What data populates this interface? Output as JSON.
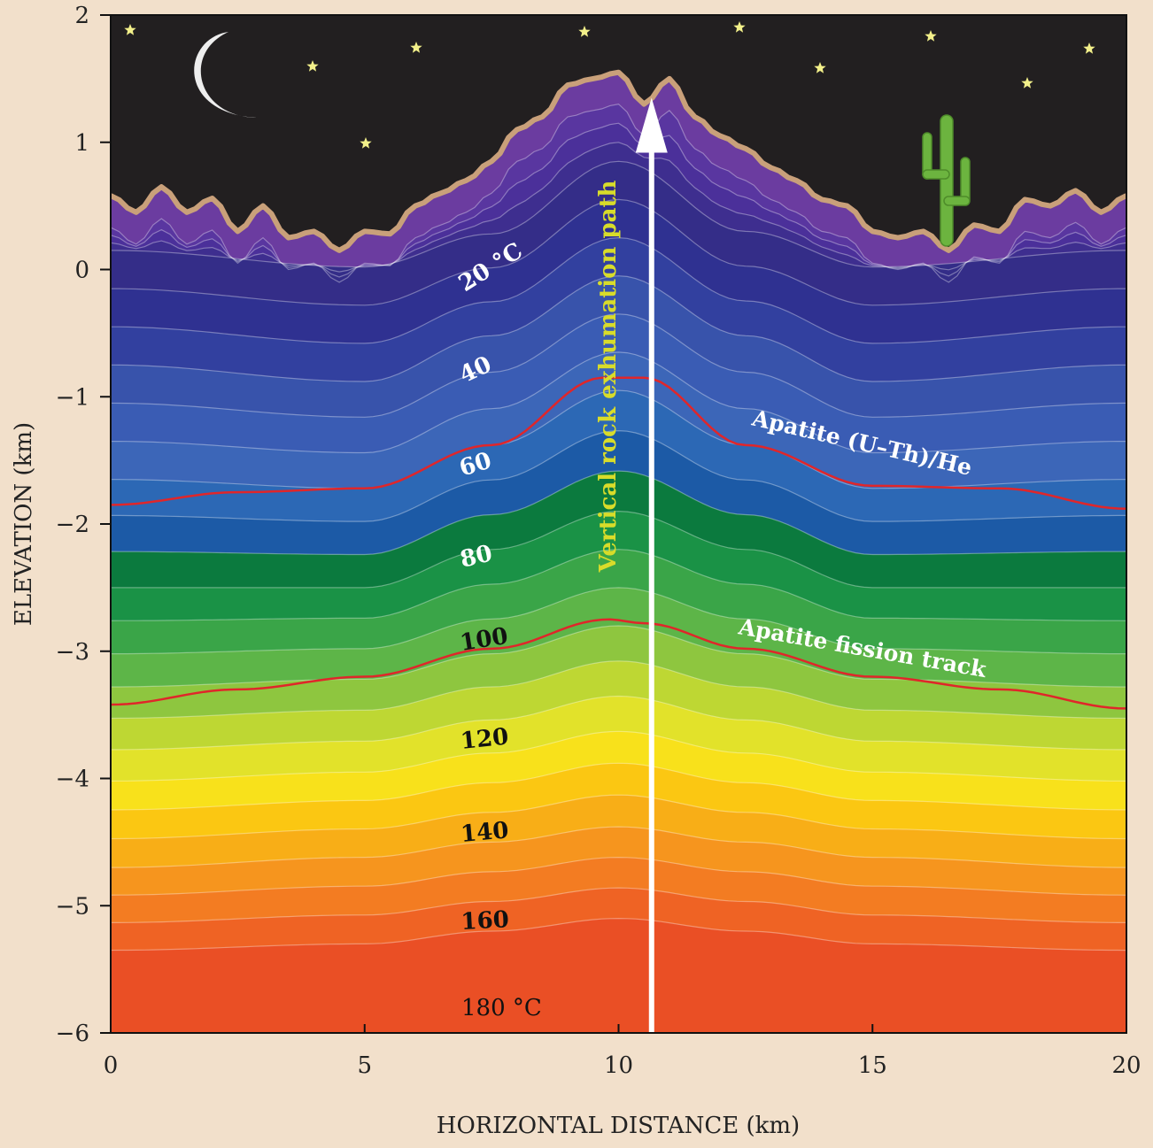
{
  "chart_data": {
    "type": "area",
    "xlabel": "HORIZONTAL DISTANCE (km)",
    "ylabel": "ELEVATION (km)",
    "xlim": [
      0,
      20
    ],
    "ylim": [
      -6,
      2
    ],
    "x_ticks": [
      0,
      5,
      10,
      15,
      20
    ],
    "y_ticks": [
      -6,
      -5,
      -4,
      -3,
      -2,
      -1,
      0,
      1,
      2
    ],
    "x_tick_labels": [
      "0",
      "5",
      "10",
      "15",
      "20"
    ],
    "y_tick_labels": [
      "−6",
      "−5",
      "−4",
      "−3",
      "−2",
      "−1",
      "0",
      "1",
      "2"
    ],
    "topography": {
      "x": [
        0,
        0.5,
        1,
        1.5,
        2,
        2.5,
        3,
        3.5,
        4,
        4.5,
        5,
        5.5,
        6,
        6.5,
        7,
        7.5,
        8,
        8.5,
        9,
        9.5,
        10,
        10.5,
        11,
        11.5,
        12,
        12.5,
        13,
        13.5,
        14,
        14.5,
        15,
        15.5,
        16,
        16.5,
        17,
        17.5,
        18,
        18.5,
        19,
        19.5,
        20
      ],
      "elevation": [
        0.58,
        0.45,
        0.65,
        0.45,
        0.56,
        0.3,
        0.5,
        0.25,
        0.3,
        0.15,
        0.3,
        0.28,
        0.5,
        0.6,
        0.7,
        0.85,
        1.1,
        1.2,
        1.45,
        1.5,
        1.55,
        1.3,
        1.5,
        1.2,
        1.05,
        0.95,
        0.8,
        0.7,
        0.55,
        0.5,
        0.3,
        0.25,
        0.3,
        0.15,
        0.35,
        0.3,
        0.55,
        0.5,
        0.62,
        0.45,
        0.58
      ]
    },
    "isotherms": {
      "x": [
        0,
        5,
        7.5,
        10,
        12.5,
        15,
        20
      ],
      "series": [
        {
          "name": "20 °C",
          "temperature": 20,
          "elevation": [
            0.15,
            0.02,
            0.28,
            0.85,
            0.3,
            0.02,
            0.15
          ]
        },
        {
          "name": "40",
          "temperature": 40,
          "elevation": [
            -0.75,
            -0.88,
            -0.52,
            -0.05,
            -0.52,
            -0.88,
            -0.75
          ]
        },
        {
          "name": "60",
          "temperature": 60,
          "elevation": [
            -1.65,
            -1.72,
            -1.38,
            -0.95,
            -1.38,
            -1.72,
            -1.65
          ]
        },
        {
          "name": "80",
          "temperature": 80,
          "elevation": [
            -2.5,
            -2.5,
            -2.2,
            -1.9,
            -2.2,
            -2.5,
            -2.5
          ]
        },
        {
          "name": "100",
          "temperature": 100,
          "elevation": [
            -3.28,
            -3.22,
            -3.02,
            -2.8,
            -3.02,
            -3.22,
            -3.28
          ]
        },
        {
          "name": "120",
          "temperature": 120,
          "elevation": [
            -4.02,
            -3.95,
            -3.8,
            -3.63,
            -3.8,
            -3.95,
            -4.02
          ]
        },
        {
          "name": "140",
          "temperature": 140,
          "elevation": [
            -4.7,
            -4.62,
            -4.5,
            -4.38,
            -4.5,
            -4.62,
            -4.7
          ]
        },
        {
          "name": "160",
          "temperature": 160,
          "elevation": [
            -5.35,
            -5.3,
            -5.2,
            -5.1,
            -5.2,
            -5.3,
            -5.35
          ]
        },
        {
          "name": "180 °C",
          "temperature": 180,
          "elevation": [
            -5.95,
            -5.92,
            -5.85,
            -5.78,
            -5.85,
            -5.92,
            -5.95
          ]
        }
      ]
    },
    "closure_curves": [
      {
        "name": "Apatite (U–Th)/He",
        "x": [
          0,
          2.5,
          5,
          7.5,
          9.7,
          10.5,
          12.5,
          15,
          17.5,
          20
        ],
        "elevation": [
          -1.85,
          -1.75,
          -1.72,
          -1.38,
          -0.85,
          -0.85,
          -1.38,
          -1.7,
          -1.72,
          -1.88
        ]
      },
      {
        "name": "Apatite fission track",
        "x": [
          0,
          2.5,
          5,
          7.5,
          9.8,
          10.5,
          12.5,
          15,
          17.5,
          20
        ],
        "elevation": [
          -3.42,
          -3.3,
          -3.2,
          -2.98,
          -2.75,
          -2.78,
          -2.98,
          -3.2,
          -3.3,
          -3.45
        ]
      }
    ],
    "exhumation_path": {
      "label": "Vertical rock exhumation path",
      "x": 10.65,
      "from_elevation": -6,
      "to_elevation": 1.35
    },
    "colors": {
      "sky": "#221f20",
      "topo_outline": "#c9a07a",
      "closure_line": "#e0262a",
      "exhumation_label": "#d8dc2a",
      "bands": [
        "#6b3ca0",
        "#5936a0",
        "#4b309a",
        "#3e2e8f",
        "#342d88",
        "#2f3191",
        "#32409f",
        "#3853ab",
        "#3a5cb4",
        "#3c66b8",
        "#2c68b5",
        "#1c5aa6",
        "#0b7a3e",
        "#1a9246",
        "#3aa548",
        "#5db548",
        "#8ec63f",
        "#bed733",
        "#e2e22a",
        "#f8e11b",
        "#fbc712",
        "#f8ae17",
        "#f6951e",
        "#f37c22",
        "#ef6324",
        "#ea4f25"
      ]
    }
  }
}
